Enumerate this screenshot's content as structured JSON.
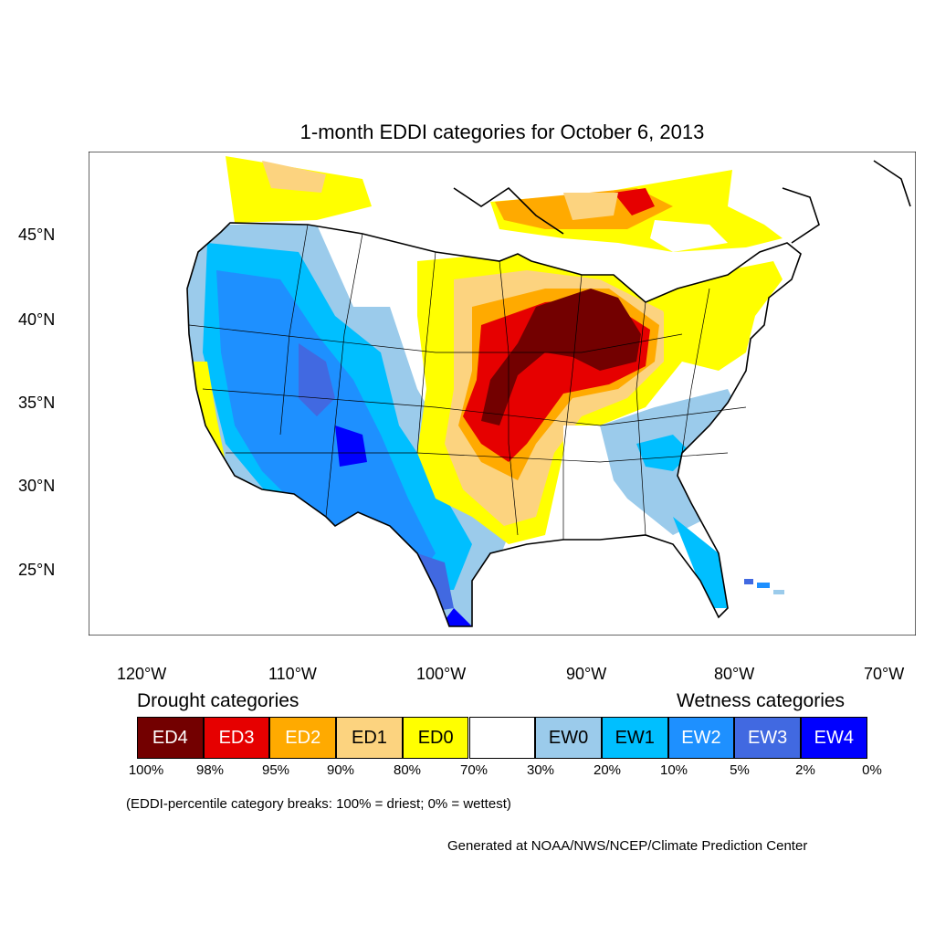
{
  "title": "1-month EDDI categories for October 6, 2013",
  "lat_ticks": [
    "45°N",
    "40°N",
    "35°N",
    "30°N",
    "25°N"
  ],
  "lon_ticks": [
    "120°W",
    "110°W",
    "100°W",
    "90°W",
    "80°W",
    "70°W"
  ],
  "legend": {
    "drought_title": "Drought categories",
    "wetness_title": "Wetness categories",
    "categories": [
      {
        "label": "ED4",
        "color": "#730000",
        "text_color": "#ffffff"
      },
      {
        "label": "ED3",
        "color": "#e60000",
        "text_color": "#ffffff"
      },
      {
        "label": "ED2",
        "color": "#ffaa00",
        "text_color": "#ffffff"
      },
      {
        "label": "ED1",
        "color": "#fcd37f",
        "text_color": "#000000"
      },
      {
        "label": "ED0",
        "color": "#ffff00",
        "text_color": "#000000"
      },
      {
        "label": "",
        "color": "#ffffff",
        "text_color": "#000000"
      },
      {
        "label": "EW0",
        "color": "#9bcbeb",
        "text_color": "#000000"
      },
      {
        "label": "EW1",
        "color": "#00bfff",
        "text_color": "#000000"
      },
      {
        "label": "EW2",
        "color": "#1e90ff",
        "text_color": "#ffffff"
      },
      {
        "label": "EW3",
        "color": "#4169e1",
        "text_color": "#ffffff"
      },
      {
        "label": "EW4",
        "color": "#0000ff",
        "text_color": "#ffffff"
      }
    ],
    "percentiles": [
      "100%",
      "98%",
      "95%",
      "90%",
      "80%",
      "70%",
      "30%",
      "20%",
      "10%",
      "5%",
      "2%",
      "0%"
    ]
  },
  "break_note": "(EDDI-percentile category breaks: 100% = driest; 0% = wettest)",
  "credit": "Generated at NOAA/NWS/NCEP/Climate Prediction Center"
}
